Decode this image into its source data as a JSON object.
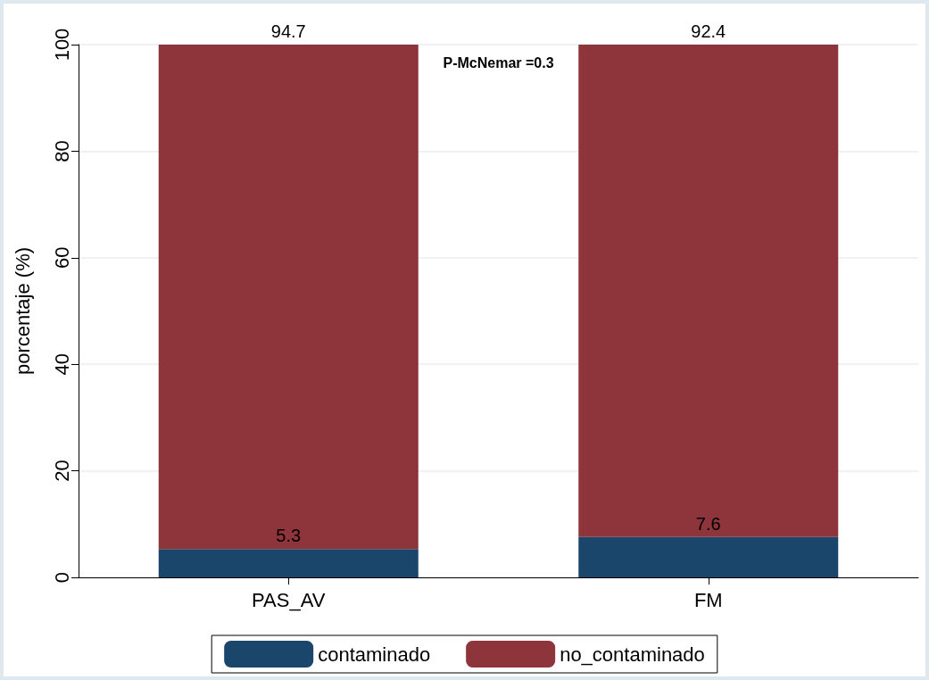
{
  "chart_data": {
    "type": "bar",
    "stacked": true,
    "ylabel": "porcentaje (%)",
    "categories": [
      "PAS_AV",
      "FM"
    ],
    "series": [
      {
        "name": "contaminado",
        "color": "#1a466b",
        "values": [
          5.3,
          7.6
        ]
      },
      {
        "name": "no_contaminado",
        "color": "#8e343b",
        "values": [
          94.7,
          92.4
        ]
      }
    ],
    "ylim": [
      0,
      100
    ],
    "yticks": [
      0,
      20,
      40,
      60,
      80,
      100
    ],
    "grid": "y",
    "legend": "bottom",
    "data_labels": true,
    "annotations": [
      "P-McNemar =0.3"
    ]
  }
}
